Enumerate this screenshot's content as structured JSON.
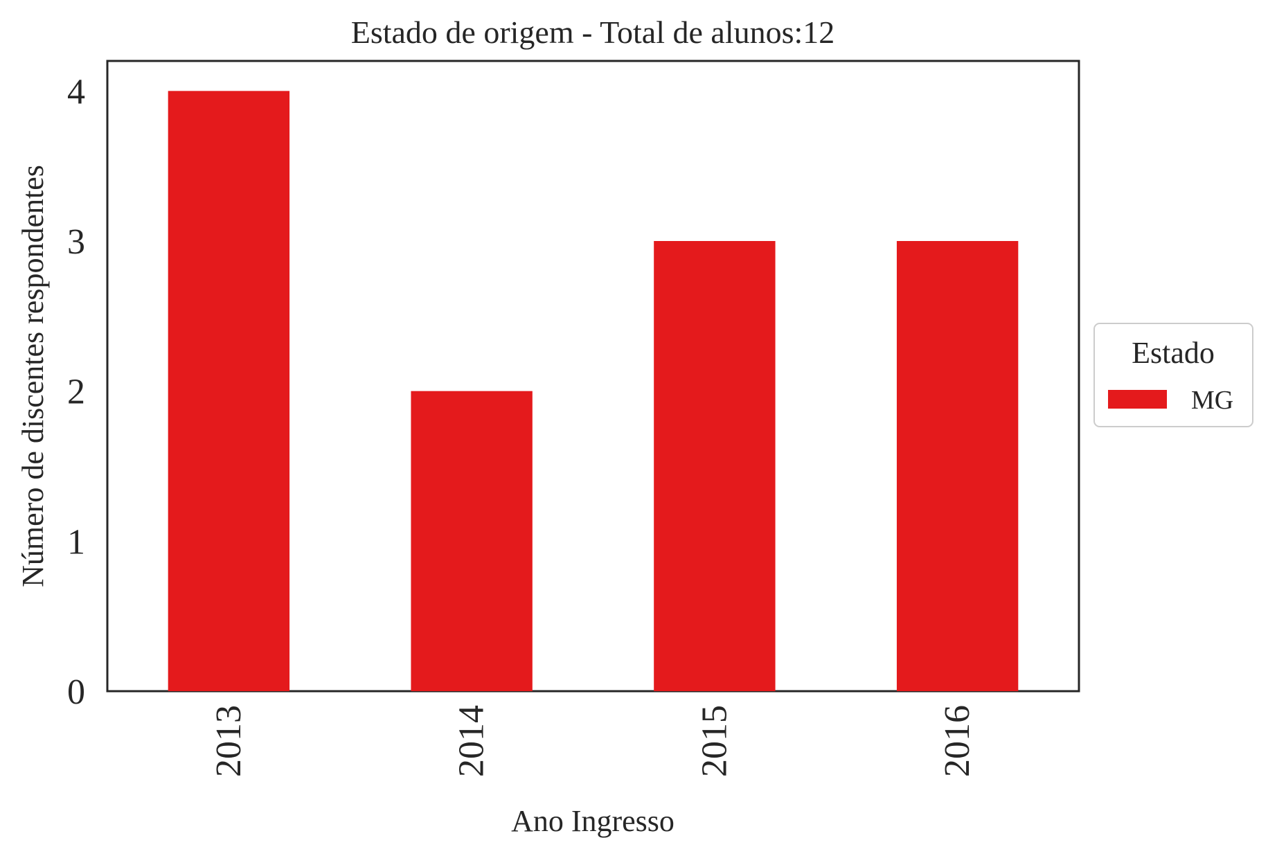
{
  "chart_data": {
    "type": "bar",
    "title": "Estado de origem - Total de alunos:12",
    "xlabel": "Ano Ingresso",
    "ylabel": "Número de discentes respondentes",
    "categories": [
      "2013",
      "2014",
      "2015",
      "2016"
    ],
    "series": [
      {
        "name": "MG",
        "values": [
          4,
          2,
          3,
          3
        ],
        "color": "#e41a1c"
      }
    ],
    "ylim": [
      0,
      4.2
    ],
    "yticks": [
      "0",
      "1",
      "2",
      "3",
      "4"
    ],
    "legend": {
      "title": "Estado",
      "placement": "right-center outside"
    },
    "grid": false,
    "colors": {
      "axis": "#262626",
      "bar": "#e41a1c",
      "legend_border": "#cccccc"
    }
  }
}
